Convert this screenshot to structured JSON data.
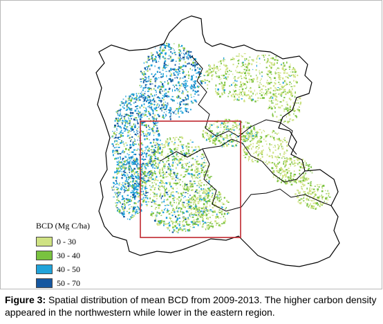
{
  "legend": {
    "title": "BCD (Mg C/ha)",
    "items": [
      {
        "label": "0 - 30",
        "color": "#cfe283"
      },
      {
        "label": "30 - 40",
        "color": "#79c23f"
      },
      {
        "label": "40 - 50",
        "color": "#21a3da"
      },
      {
        "label": "50 - 70",
        "color": "#1557a0"
      }
    ]
  },
  "caption": {
    "figure_label": "Figure 3:",
    "text": " Spatial distribution of mean BCD from 2009-2013. The higher carbon density appeared in the northwestern while lower in the eastern region."
  },
  "map": {
    "boundary_color": "#000000",
    "highlight_box_color": "#c0262d"
  }
}
